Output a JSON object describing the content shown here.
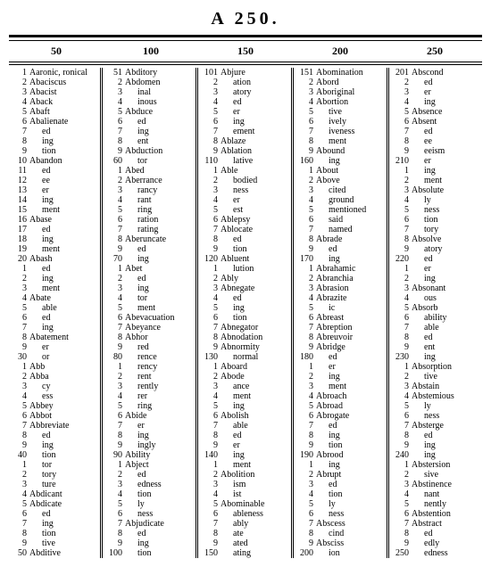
{
  "title": "A  250.",
  "headers": [
    "50",
    "100",
    "150",
    "200",
    "250"
  ],
  "columns": [
    [
      {
        "n": "1",
        "w": "Aaronic, ronical"
      },
      {
        "n": "2",
        "w": "Abaciscus"
      },
      {
        "n": "3",
        "w": "Abacist"
      },
      {
        "n": "4",
        "w": "Aback"
      },
      {
        "n": "5",
        "w": "Abaft"
      },
      {
        "n": "6",
        "w": "Abalienate"
      },
      {
        "n": "7",
        "w": "ed",
        "i": 1
      },
      {
        "n": "8",
        "w": "ing",
        "i": 1
      },
      {
        "n": "9",
        "w": "tion",
        "i": 1
      },
      {
        "n": "10",
        "w": "Abandon"
      },
      {
        "n": "11",
        "w": "ed",
        "i": 1
      },
      {
        "n": "12",
        "w": "ee",
        "i": 1
      },
      {
        "n": "13",
        "w": "er",
        "i": 1
      },
      {
        "n": "14",
        "w": "ing",
        "i": 1
      },
      {
        "n": "15",
        "w": "ment",
        "i": 1
      },
      {
        "n": "16",
        "w": "Abase"
      },
      {
        "n": "17",
        "w": "ed",
        "i": 1
      },
      {
        "n": "18",
        "w": "ing",
        "i": 1
      },
      {
        "n": "19",
        "w": "ment",
        "i": 1
      },
      {
        "n": "20",
        "w": "Abash"
      },
      {
        "n": "1",
        "w": "ed",
        "i": 1
      },
      {
        "n": "2",
        "w": "ing",
        "i": 1
      },
      {
        "n": "3",
        "w": "ment",
        "i": 1
      },
      {
        "n": "4",
        "w": "Abate"
      },
      {
        "n": "5",
        "w": "able",
        "i": 1
      },
      {
        "n": "6",
        "w": "ed",
        "i": 1
      },
      {
        "n": "7",
        "w": "ing",
        "i": 1
      },
      {
        "n": "8",
        "w": "Abatement"
      },
      {
        "n": "9",
        "w": "er",
        "i": 1
      },
      {
        "n": "30",
        "w": "or",
        "i": 1
      },
      {
        "n": "1",
        "w": "Abb"
      },
      {
        "n": "2",
        "w": "Abba"
      },
      {
        "n": "3",
        "w": "cy",
        "i": 1
      },
      {
        "n": "4",
        "w": "ess",
        "i": 1
      },
      {
        "n": "5",
        "w": "Abbey"
      },
      {
        "n": "6",
        "w": "Abbot"
      },
      {
        "n": "7",
        "w": "Abbreviate"
      },
      {
        "n": "8",
        "w": "ed",
        "i": 1
      },
      {
        "n": "9",
        "w": "ing",
        "i": 1
      },
      {
        "n": "40",
        "w": "tion",
        "i": 1
      },
      {
        "n": "1",
        "w": "tor",
        "i": 1
      },
      {
        "n": "2",
        "w": "tory",
        "i": 1
      },
      {
        "n": "3",
        "w": "ture",
        "i": 1
      },
      {
        "n": "4",
        "w": "Abdicant"
      },
      {
        "n": "5",
        "w": "Abdicate"
      },
      {
        "n": "6",
        "w": "ed",
        "i": 1
      },
      {
        "n": "7",
        "w": "ing",
        "i": 1
      },
      {
        "n": "8",
        "w": "tion",
        "i": 1
      },
      {
        "n": "9",
        "w": "tive",
        "i": 1
      },
      {
        "n": "50",
        "w": "Abditive"
      }
    ],
    [
      {
        "n": "51",
        "w": "Abditory"
      },
      {
        "n": "2",
        "w": "Abdomen"
      },
      {
        "n": "3",
        "w": "inal",
        "i": 1
      },
      {
        "n": "4",
        "w": "inous",
        "i": 1
      },
      {
        "n": "5",
        "w": "Abduce"
      },
      {
        "n": "6",
        "w": "ed",
        "i": 1
      },
      {
        "n": "7",
        "w": "ing",
        "i": 1
      },
      {
        "n": "8",
        "w": "ent",
        "i": 1
      },
      {
        "n": "9",
        "w": "Abduction"
      },
      {
        "n": "60",
        "w": "tor",
        "i": 1
      },
      {
        "n": "1",
        "w": "Abed"
      },
      {
        "n": "2",
        "w": "Aberrance"
      },
      {
        "n": "3",
        "w": "rancy",
        "i": 1
      },
      {
        "n": "4",
        "w": "rant",
        "i": 1
      },
      {
        "n": "5",
        "w": "ring",
        "i": 1
      },
      {
        "n": "6",
        "w": "ration",
        "i": 1
      },
      {
        "n": "7",
        "w": "rating",
        "i": 1
      },
      {
        "n": "8",
        "w": "Aberuncate"
      },
      {
        "n": "9",
        "w": "ed",
        "i": 1
      },
      {
        "n": "70",
        "w": "ing",
        "i": 1
      },
      {
        "n": "1",
        "w": "Abet"
      },
      {
        "n": "2",
        "w": "ed",
        "i": 1
      },
      {
        "n": "3",
        "w": "ing",
        "i": 1
      },
      {
        "n": "4",
        "w": "tor",
        "i": 1
      },
      {
        "n": "5",
        "w": "ment",
        "i": 1
      },
      {
        "n": "6",
        "w": "Abevacuation"
      },
      {
        "n": "7",
        "w": "Abeyance"
      },
      {
        "n": "8",
        "w": "Abhor"
      },
      {
        "n": "9",
        "w": "red",
        "i": 1
      },
      {
        "n": "80",
        "w": "rence",
        "i": 1
      },
      {
        "n": "1",
        "w": "rency",
        "i": 1
      },
      {
        "n": "2",
        "w": "rent",
        "i": 1
      },
      {
        "n": "3",
        "w": "rently",
        "i": 1
      },
      {
        "n": "4",
        "w": "rer",
        "i": 1
      },
      {
        "n": "5",
        "w": "ring",
        "i": 1
      },
      {
        "n": "6",
        "w": "Abide"
      },
      {
        "n": "7",
        "w": "er",
        "i": 1
      },
      {
        "n": "8",
        "w": "ing",
        "i": 1
      },
      {
        "n": "9",
        "w": "ingly",
        "i": 1
      },
      {
        "n": "90",
        "w": "Ability"
      },
      {
        "n": "1",
        "w": "Abject"
      },
      {
        "n": "2",
        "w": "ed",
        "i": 1
      },
      {
        "n": "3",
        "w": "edness",
        "i": 1
      },
      {
        "n": "4",
        "w": "tion",
        "i": 1
      },
      {
        "n": "5",
        "w": "ly",
        "i": 1
      },
      {
        "n": "6",
        "w": "ness",
        "i": 1
      },
      {
        "n": "7",
        "w": "Abjudicate"
      },
      {
        "n": "8",
        "w": "ed",
        "i": 1
      },
      {
        "n": "9",
        "w": "ing",
        "i": 1
      },
      {
        "n": "100",
        "w": "tion",
        "i": 1
      }
    ],
    [
      {
        "n": "101",
        "w": "Abjure"
      },
      {
        "n": "2",
        "w": "ation",
        "i": 1
      },
      {
        "n": "3",
        "w": "atory",
        "i": 1
      },
      {
        "n": "4",
        "w": "ed",
        "i": 1
      },
      {
        "n": "5",
        "w": "er",
        "i": 1
      },
      {
        "n": "6",
        "w": "ing",
        "i": 1
      },
      {
        "n": "7",
        "w": "ement",
        "i": 1
      },
      {
        "n": "8",
        "w": "Ablaze"
      },
      {
        "n": "9",
        "w": "Ablation"
      },
      {
        "n": "110",
        "w": "lative",
        "i": 1
      },
      {
        "n": "1",
        "w": "Able"
      },
      {
        "n": "2",
        "w": "bodied",
        "i": 1
      },
      {
        "n": "3",
        "w": "ness",
        "i": 1
      },
      {
        "n": "4",
        "w": "er",
        "i": 1
      },
      {
        "n": "5",
        "w": "est",
        "i": 1
      },
      {
        "n": "6",
        "w": "Ablepsy"
      },
      {
        "n": "7",
        "w": "Ablocate"
      },
      {
        "n": "8",
        "w": "ed",
        "i": 1
      },
      {
        "n": "9",
        "w": "tion",
        "i": 1
      },
      {
        "n": "120",
        "w": "Abluent"
      },
      {
        "n": "1",
        "w": "lution",
        "i": 1
      },
      {
        "n": "2",
        "w": "Ably"
      },
      {
        "n": "3",
        "w": "Abnegate"
      },
      {
        "n": "4",
        "w": "ed",
        "i": 1
      },
      {
        "n": "5",
        "w": "ing",
        "i": 1
      },
      {
        "n": "6",
        "w": "tion",
        "i": 1
      },
      {
        "n": "7",
        "w": "Abnegator"
      },
      {
        "n": "8",
        "w": "Abnodation"
      },
      {
        "n": "9",
        "w": "Abnormity"
      },
      {
        "n": "130",
        "w": "normal",
        "i": 1
      },
      {
        "n": "1",
        "w": "Aboard"
      },
      {
        "n": "2",
        "w": "Abode"
      },
      {
        "n": "3",
        "w": "ance",
        "i": 1
      },
      {
        "n": "4",
        "w": "ment",
        "i": 1
      },
      {
        "n": "5",
        "w": "ing",
        "i": 1
      },
      {
        "n": "6",
        "w": "Abolish"
      },
      {
        "n": "7",
        "w": "able",
        "i": 1
      },
      {
        "n": "8",
        "w": "ed",
        "i": 1
      },
      {
        "n": "9",
        "w": "er",
        "i": 1
      },
      {
        "n": "140",
        "w": "ing",
        "i": 1
      },
      {
        "n": "1",
        "w": "ment",
        "i": 1
      },
      {
        "n": "2",
        "w": "Abolition"
      },
      {
        "n": "3",
        "w": "ism",
        "i": 1
      },
      {
        "n": "4",
        "w": "ist",
        "i": 1
      },
      {
        "n": "5",
        "w": "Abominable"
      },
      {
        "n": "6",
        "w": "ableness",
        "i": 1
      },
      {
        "n": "7",
        "w": "ably",
        "i": 1
      },
      {
        "n": "8",
        "w": "ate",
        "i": 1
      },
      {
        "n": "9",
        "w": "ated",
        "i": 1
      },
      {
        "n": "150",
        "w": "ating",
        "i": 1
      }
    ],
    [
      {
        "n": "151",
        "w": "Abomination"
      },
      {
        "n": "2",
        "w": "Abord"
      },
      {
        "n": "3",
        "w": "Aboriginal"
      },
      {
        "n": "4",
        "w": "Abortion"
      },
      {
        "n": "5",
        "w": "tive",
        "i": 1
      },
      {
        "n": "6",
        "w": "ively",
        "i": 1
      },
      {
        "n": "7",
        "w": "iveness",
        "i": 1
      },
      {
        "n": "8",
        "w": "ment",
        "i": 1
      },
      {
        "n": "9",
        "w": "Abound"
      },
      {
        "n": "160",
        "w": "ing",
        "i": 1
      },
      {
        "n": "1",
        "w": "About"
      },
      {
        "n": "2",
        "w": "Above"
      },
      {
        "n": "3",
        "w": "cited",
        "i": 1
      },
      {
        "n": "4",
        "w": "ground",
        "i": 1
      },
      {
        "n": "5",
        "w": "mentioned",
        "i": 1
      },
      {
        "n": "6",
        "w": "said",
        "i": 1
      },
      {
        "n": "7",
        "w": "named",
        "i": 1
      },
      {
        "n": "8",
        "w": "Abrade"
      },
      {
        "n": "9",
        "w": "ed",
        "i": 1
      },
      {
        "n": "170",
        "w": "ing",
        "i": 1
      },
      {
        "n": "1",
        "w": "Abrahamic"
      },
      {
        "n": "2",
        "w": "Abranchia"
      },
      {
        "n": "3",
        "w": "Abrasion"
      },
      {
        "n": "4",
        "w": "Abrazite"
      },
      {
        "n": "5",
        "w": "ic",
        "i": 1
      },
      {
        "n": "6",
        "w": "Abreast"
      },
      {
        "n": "7",
        "w": "Abreption"
      },
      {
        "n": "8",
        "w": "Abreuvoir"
      },
      {
        "n": "9",
        "w": "Abridge"
      },
      {
        "n": "180",
        "w": "ed",
        "i": 1
      },
      {
        "n": "1",
        "w": "er",
        "i": 1
      },
      {
        "n": "2",
        "w": "ing",
        "i": 1
      },
      {
        "n": "3",
        "w": "ment",
        "i": 1
      },
      {
        "n": "4",
        "w": "Abroach"
      },
      {
        "n": "5",
        "w": "Abroad"
      },
      {
        "n": "6",
        "w": "Abrogate"
      },
      {
        "n": "7",
        "w": "ed",
        "i": 1
      },
      {
        "n": "8",
        "w": "ing",
        "i": 1
      },
      {
        "n": "9",
        "w": "tion",
        "i": 1
      },
      {
        "n": "190",
        "w": "Abrood"
      },
      {
        "n": "1",
        "w": "ing",
        "i": 1
      },
      {
        "n": "2",
        "w": "Abrupt"
      },
      {
        "n": "3",
        "w": "ed",
        "i": 1
      },
      {
        "n": "4",
        "w": "tion",
        "i": 1
      },
      {
        "n": "5",
        "w": "ly",
        "i": 1
      },
      {
        "n": "6",
        "w": "ness",
        "i": 1
      },
      {
        "n": "7",
        "w": "Abscess"
      },
      {
        "n": "8",
        "w": "cind",
        "i": 1
      },
      {
        "n": "9",
        "w": "Absciss"
      },
      {
        "n": "200",
        "w": "ion",
        "i": 1
      }
    ],
    [
      {
        "n": "201",
        "w": "Abscond"
      },
      {
        "n": "2",
        "w": "ed",
        "i": 1
      },
      {
        "n": "3",
        "w": "er",
        "i": 1
      },
      {
        "n": "4",
        "w": "ing",
        "i": 1
      },
      {
        "n": "5",
        "w": "Absence"
      },
      {
        "n": "6",
        "w": "Absent"
      },
      {
        "n": "7",
        "w": "ed",
        "i": 1
      },
      {
        "n": "8",
        "w": "ee",
        "i": 1
      },
      {
        "n": "9",
        "w": "eeism",
        "i": 1
      },
      {
        "n": "210",
        "w": "er",
        "i": 1
      },
      {
        "n": "1",
        "w": "ing",
        "i": 1
      },
      {
        "n": "2",
        "w": "ment",
        "i": 1
      },
      {
        "n": "3",
        "w": "Absolute"
      },
      {
        "n": "4",
        "w": "ly",
        "i": 1
      },
      {
        "n": "5",
        "w": "ness",
        "i": 1
      },
      {
        "n": "6",
        "w": "tion",
        "i": 1
      },
      {
        "n": "7",
        "w": "tory",
        "i": 1
      },
      {
        "n": "8",
        "w": "Absolve"
      },
      {
        "n": "9",
        "w": "atory",
        "i": 1
      },
      {
        "n": "220",
        "w": "ed",
        "i": 1
      },
      {
        "n": "1",
        "w": "er",
        "i": 1
      },
      {
        "n": "2",
        "w": "ing",
        "i": 1
      },
      {
        "n": "3",
        "w": "Absonant"
      },
      {
        "n": "4",
        "w": "ous",
        "i": 1
      },
      {
        "n": "5",
        "w": "Absorb"
      },
      {
        "n": "6",
        "w": "ability",
        "i": 1
      },
      {
        "n": "7",
        "w": "able",
        "i": 1
      },
      {
        "n": "8",
        "w": "ed",
        "i": 1
      },
      {
        "n": "9",
        "w": "ent",
        "i": 1
      },
      {
        "n": "230",
        "w": "ing",
        "i": 1
      },
      {
        "n": "1",
        "w": "Absorption"
      },
      {
        "n": "2",
        "w": "tive",
        "i": 1
      },
      {
        "n": "3",
        "w": "Abstain"
      },
      {
        "n": "4",
        "w": "Abstemious"
      },
      {
        "n": "5",
        "w": "ly",
        "i": 1
      },
      {
        "n": "6",
        "w": "ness",
        "i": 1
      },
      {
        "n": "7",
        "w": "Absterge"
      },
      {
        "n": "8",
        "w": "ed",
        "i": 1
      },
      {
        "n": "9",
        "w": "ing",
        "i": 1
      },
      {
        "n": "240",
        "w": "ing",
        "i": 1
      },
      {
        "n": "1",
        "w": "Abstersion"
      },
      {
        "n": "2",
        "w": "sive",
        "i": 1
      },
      {
        "n": "3",
        "w": "Abstinence"
      },
      {
        "n": "4",
        "w": "nant",
        "i": 1
      },
      {
        "n": "5",
        "w": "nently",
        "i": 1
      },
      {
        "n": "6",
        "w": "Abstention"
      },
      {
        "n": "7",
        "w": "Abstract"
      },
      {
        "n": "8",
        "w": "ed",
        "i": 1
      },
      {
        "n": "9",
        "w": "edly",
        "i": 1
      },
      {
        "n": "250",
        "w": "edness",
        "i": 1
      }
    ]
  ]
}
